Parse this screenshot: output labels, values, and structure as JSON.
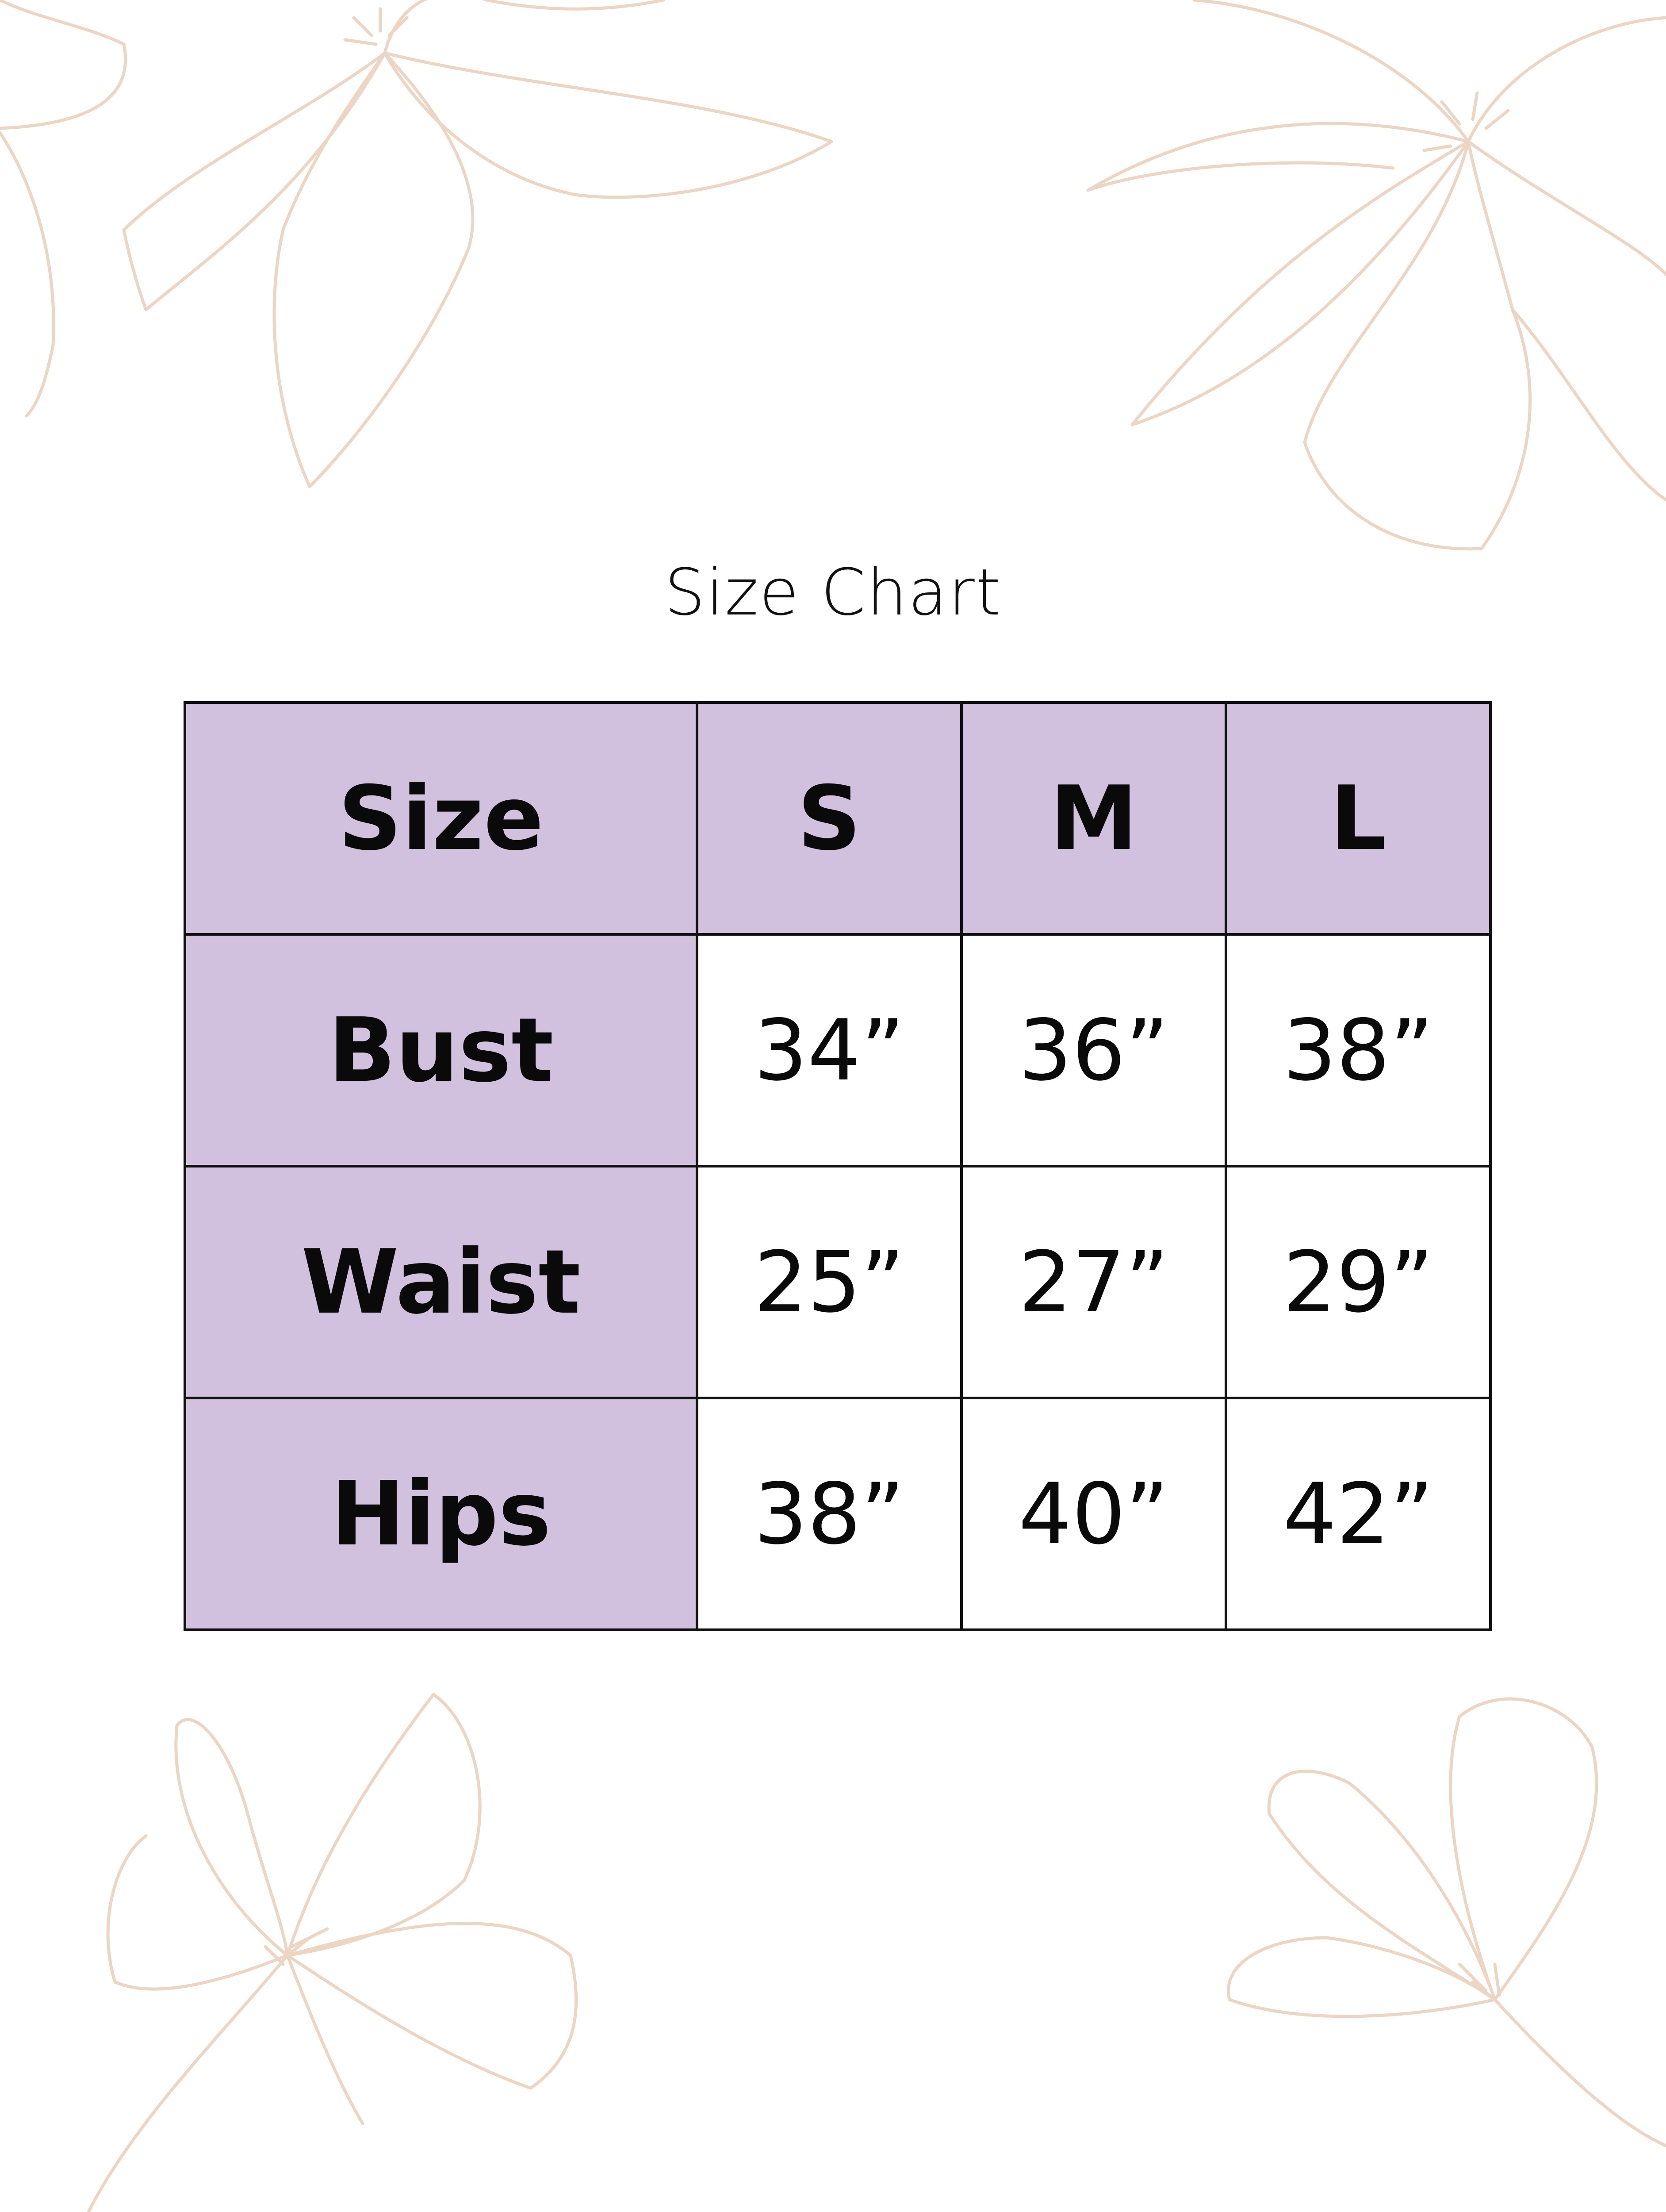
{
  "title": "Size Chart",
  "colors": {
    "header_fill": "#d2c1de",
    "border": "#111111",
    "floral_line": "#ecd5c3"
  },
  "decoration": "floral-line-art",
  "table": {
    "header": [
      "Size",
      "S",
      "M",
      "L"
    ],
    "rows": [
      {
        "label": "Bust",
        "values": [
          "34”",
          "36”",
          "38”"
        ]
      },
      {
        "label": "Waist",
        "values": [
          "25”",
          "27”",
          "29”"
        ]
      },
      {
        "label": "Hips",
        "values": [
          "38”",
          "40”",
          "42”"
        ]
      }
    ]
  }
}
